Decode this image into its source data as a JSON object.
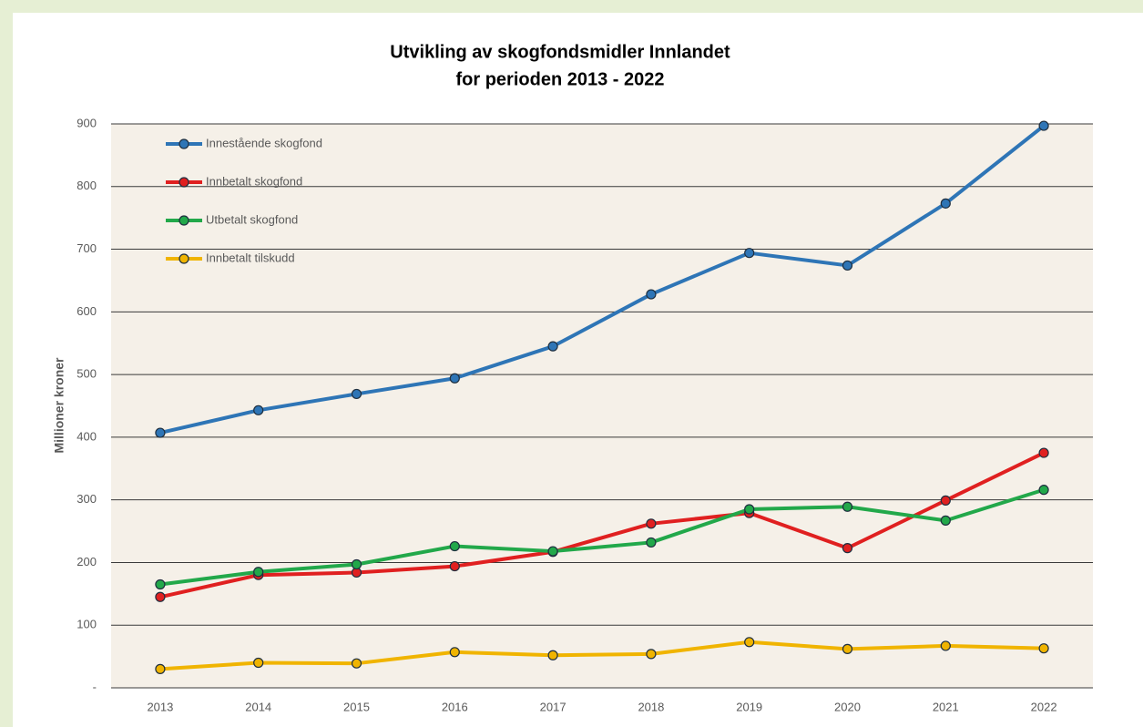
{
  "chart_data": {
    "type": "line",
    "title": [
      "Utvikling av skogfondsmidler Innlandet",
      "for perioden 2013 - 2022"
    ],
    "y_label": "Millioner kroner",
    "categories": [
      "2013",
      "2014",
      "2015",
      "2016",
      "2017",
      "2018",
      "2019",
      "2020",
      "2021",
      "2022"
    ],
    "series": [
      {
        "name": "Innestående skogfond",
        "color": "#2e75b6",
        "values": [
          407,
          443,
          469,
          494,
          545,
          628,
          694,
          674,
          773,
          897
        ]
      },
      {
        "name": "Innbetalt skogfond",
        "color": "#e02020",
        "values": [
          145,
          180,
          184,
          194,
          217,
          262,
          279,
          223,
          299,
          375
        ]
      },
      {
        "name": "Utbetalt skogfond",
        "color": "#22a84a",
        "values": [
          165,
          185,
          197,
          226,
          218,
          232,
          285,
          289,
          267,
          316
        ]
      },
      {
        "name": "Innbetalt tilskudd",
        "color": "#f0b400",
        "values": [
          30,
          40,
          39,
          57,
          52,
          54,
          73,
          62,
          67,
          63
        ]
      }
    ],
    "ylim": [
      0,
      900
    ],
    "yticks": [
      {
        "value": 0,
        "label": "-"
      },
      100,
      200,
      300,
      400,
      500,
      600,
      700,
      800,
      900
    ],
    "grid": true,
    "legend": "top-left"
  }
}
